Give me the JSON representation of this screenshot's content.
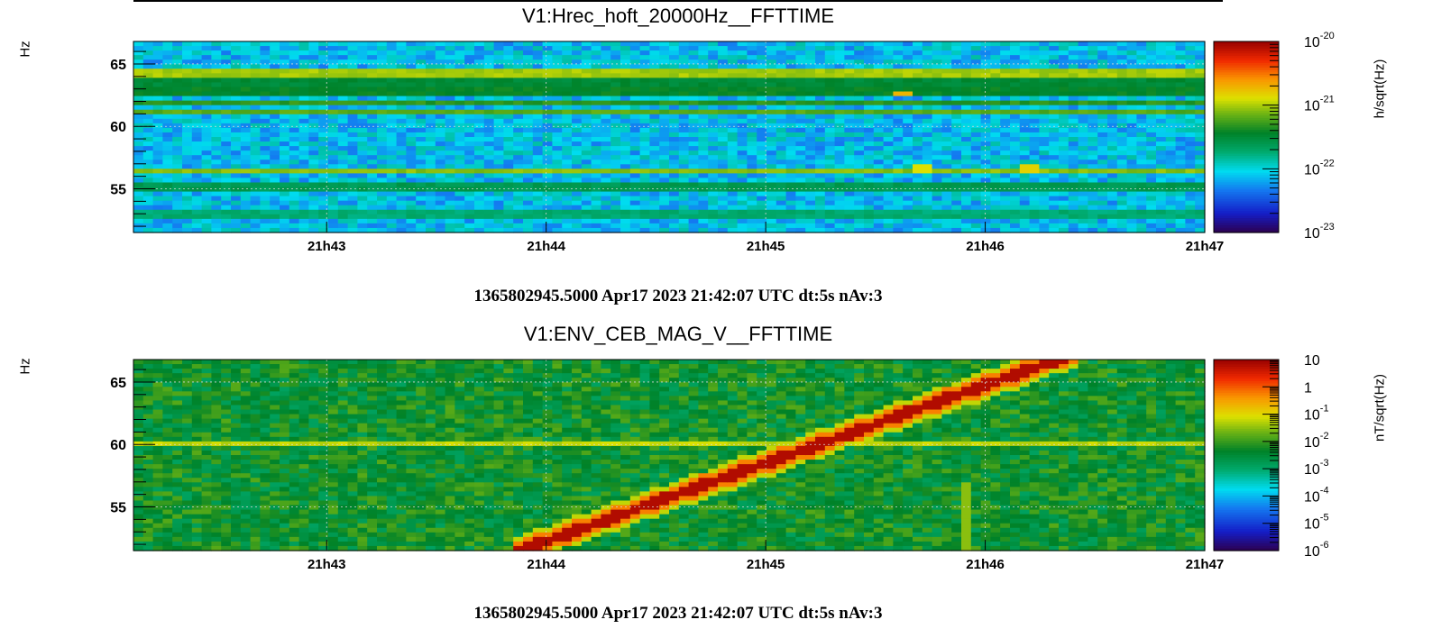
{
  "chart_data": [
    {
      "type": "heatmap",
      "title": "V1:Hrec_hoft_20000Hz__FFTTIME",
      "ylabel": "Hz",
      "zlabel": "h/sqrt(Hz)",
      "footer": "1365802945.5000 Apr17 2023 21:42:07 UTC dt:5s nAv:3",
      "xticks": [
        "21h43",
        "21h44",
        "21h45",
        "21h46",
        "21h47"
      ],
      "yticks": [
        "55",
        "60",
        "65"
      ],
      "ylim": [
        51.5,
        66.8
      ],
      "xlim_minutes": [
        42.12,
        47.0
      ],
      "zscale": "log",
      "zlim": [
        1e-23,
        1e-20
      ],
      "zticks": [
        {
          "base": "10",
          "exp": "-20"
        },
        {
          "base": "10",
          "exp": "-21"
        },
        {
          "base": "10",
          "exp": "-22"
        },
        {
          "base": "10",
          "exp": "-23"
        }
      ],
      "background_level": 0.3,
      "lines": [
        {
          "freq": 64.3,
          "level": 0.66
        },
        {
          "freq": 63.5,
          "level": 0.5
        },
        {
          "freq": 62.8,
          "level": 0.52
        },
        {
          "freq": 61.9,
          "level": 0.56
        },
        {
          "freq": 61.2,
          "level": 0.6
        },
        {
          "freq": 56.4,
          "level": 0.64
        },
        {
          "freq": 55.1,
          "level": 0.46
        },
        {
          "freq": 53.0,
          "level": 0.42
        }
      ],
      "blips": [
        {
          "t": 45.62,
          "freq": 62.6,
          "level": 0.76
        },
        {
          "t": 46.2,
          "freq": 56.5,
          "level": 0.72
        },
        {
          "t": 45.7,
          "freq": 56.5,
          "level": 0.7
        }
      ],
      "grid": true,
      "colormap": "rainbow"
    },
    {
      "type": "heatmap",
      "title": "V1:ENV_CEB_MAG_V__FFTTIME",
      "ylabel": "Hz",
      "zlabel": "nT/sqrt(Hz)",
      "footer": "1365802945.5000 Apr17 2023 21:42:07 UTC dt:5s nAv:3",
      "xticks": [
        "21h43",
        "21h44",
        "21h45",
        "21h46",
        "21h47"
      ],
      "yticks": [
        "55",
        "60",
        "65"
      ],
      "ylim": [
        51.5,
        66.8
      ],
      "xlim_minutes": [
        42.12,
        47.0
      ],
      "zscale": "log",
      "zlim": [
        1e-06,
        10
      ],
      "zticks": [
        {
          "base": "10",
          "exp": ""
        },
        {
          "base": "1",
          "exp": ""
        },
        {
          "base": "10",
          "exp": "-1"
        },
        {
          "base": "10",
          "exp": "-2"
        },
        {
          "base": "10",
          "exp": "-3"
        },
        {
          "base": "10",
          "exp": "-4"
        },
        {
          "base": "10",
          "exp": "-5"
        },
        {
          "base": "10",
          "exp": "-6"
        }
      ],
      "background_level": 0.52,
      "lines": [
        {
          "freq": 60.0,
          "level": 0.68
        }
      ],
      "sweep": {
        "t_start": 43.88,
        "f_start": 51.5,
        "t_end": 46.33,
        "f_end": 66.8,
        "level": 0.97
      },
      "vertical_lines": [
        {
          "t": 45.92,
          "f_min": 51.5,
          "f_max": 57.0,
          "level": 0.64
        }
      ],
      "grid": true,
      "colormap": "rainbow"
    }
  ]
}
